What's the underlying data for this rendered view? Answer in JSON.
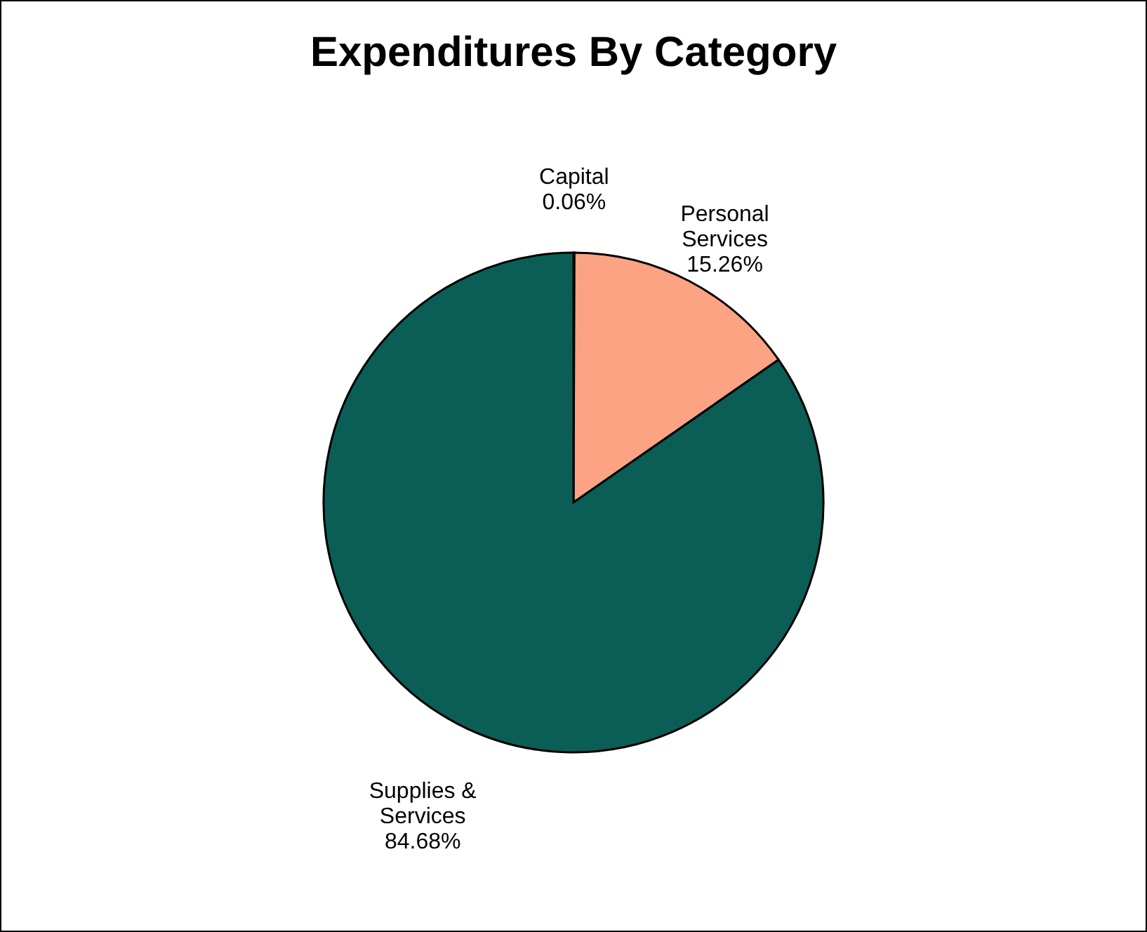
{
  "chart_data": {
    "type": "pie",
    "title": "Expenditures By Category",
    "categories": [
      "Capital",
      "Personal Services",
      "Supplies & Services"
    ],
    "values": [
      0.06,
      15.26,
      84.68
    ],
    "colors": [
      "#4d4d4d",
      "#fca384",
      "#0b5e55"
    ],
    "value_labels": [
      "0.06%",
      "15.26%",
      "84.68%"
    ],
    "legend": false
  }
}
